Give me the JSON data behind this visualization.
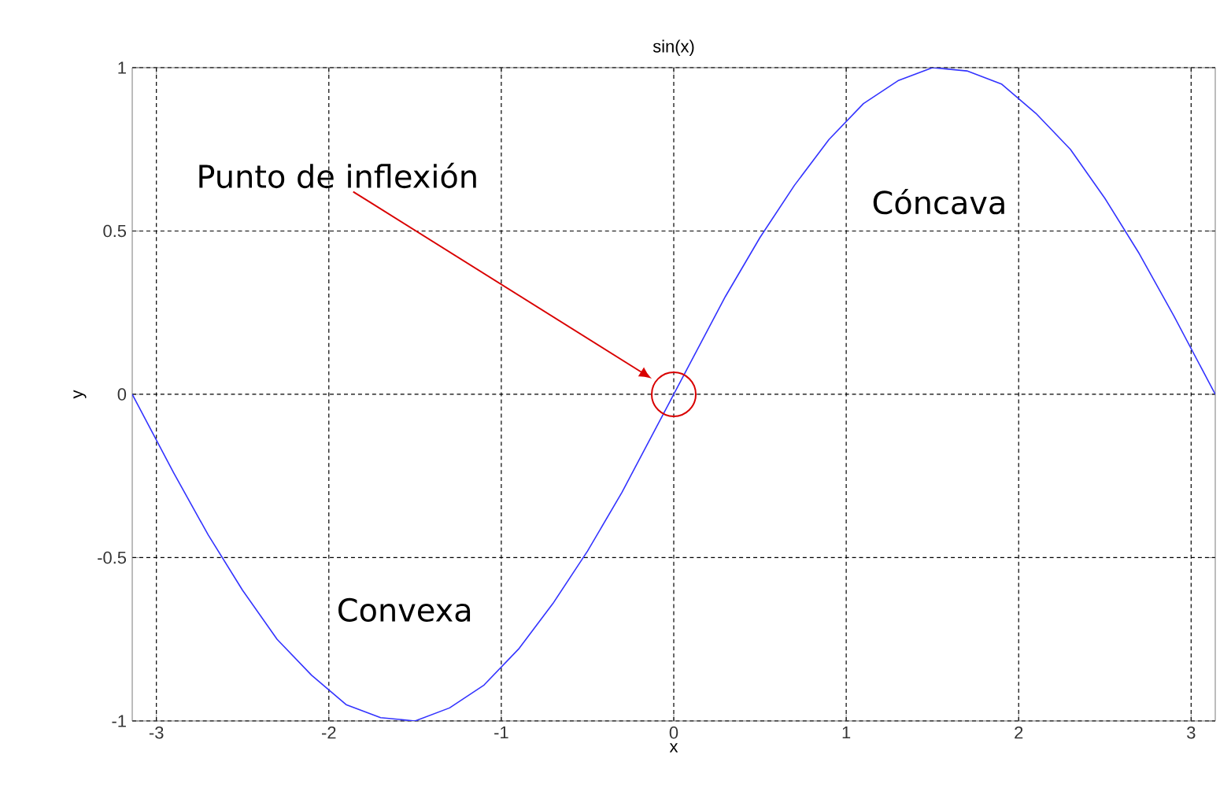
{
  "chart_data": {
    "type": "line",
    "title": "sin(x)",
    "xlabel": "x",
    "ylabel": "y",
    "x": [
      -3.14,
      -2.9,
      -2.7,
      -2.5,
      -2.3,
      -2.1,
      -1.9,
      -1.7,
      -1.5,
      -1.3,
      -1.1,
      -0.9,
      -0.7,
      -0.5,
      -0.3,
      -0.1,
      0,
      0.1,
      0.3,
      0.5,
      0.7,
      0.9,
      1.1,
      1.3,
      1.5,
      1.7,
      1.9,
      2.1,
      2.3,
      2.5,
      2.7,
      2.9,
      3.14
    ],
    "series": [
      {
        "color": "#3333ff",
        "values": [
          0.0,
          -0.24,
          -0.43,
          -0.6,
          -0.75,
          -0.86,
          -0.95,
          -0.99,
          -1.0,
          -0.96,
          -0.89,
          -0.78,
          -0.64,
          -0.48,
          -0.3,
          -0.1,
          0.0,
          0.1,
          0.3,
          0.48,
          0.64,
          0.78,
          0.89,
          0.96,
          1.0,
          0.99,
          0.95,
          0.86,
          0.75,
          0.6,
          0.43,
          0.24,
          0.0
        ]
      }
    ],
    "xlim": [
      -3.14,
      3.14
    ],
    "ylim": [
      -1,
      1
    ],
    "xticks": [
      -3,
      -2,
      -1,
      0,
      1,
      2,
      3
    ],
    "yticks": [
      -1,
      -0.5,
      0,
      0.5,
      1
    ],
    "grid": true,
    "marker": "none",
    "line_style": "solid",
    "annotations": [
      "Punto de inflexión",
      "Cóncava",
      "Convexa"
    ]
  }
}
